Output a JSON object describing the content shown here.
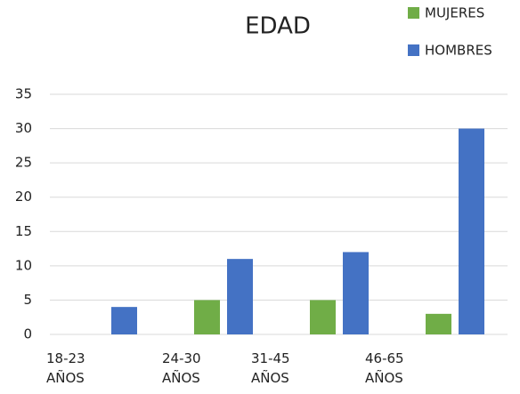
{
  "chart_data": {
    "type": "bar",
    "title": "EDAD",
    "categories": [
      "18-23 AÑOS",
      "24-30 AÑOS",
      "31-45 AÑOS",
      "46-65 AÑOS"
    ],
    "series": [
      {
        "name": "MUJERES",
        "color": "#70ad47",
        "values": [
          0,
          5,
          5,
          3
        ]
      },
      {
        "name": "HOMBRES",
        "color": "#4472c4",
        "values": [
          4,
          11,
          12,
          30
        ]
      }
    ],
    "ylim": [
      0,
      35
    ],
    "yticks": [
      0,
      5,
      10,
      15,
      20,
      25,
      30,
      35
    ],
    "grid": true,
    "legend": "top-right"
  }
}
